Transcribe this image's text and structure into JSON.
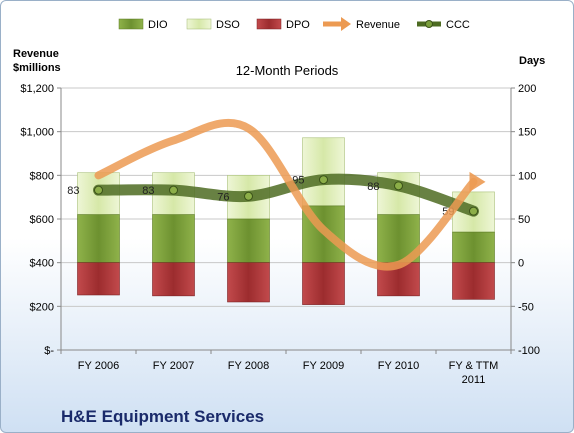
{
  "chart_data": {
    "type": "bar",
    "title": "12-Month Periods",
    "company": "H&E Equipment Services",
    "left_axis": {
      "label_line1": "Revenue",
      "label_line2": "$millions",
      "min": 0,
      "max": 1200,
      "step": 200,
      "tick_labels": [
        "$-",
        "$200",
        "$400",
        "$600",
        "$800",
        "$1,000",
        "$1,200"
      ]
    },
    "right_axis": {
      "label": "Days",
      "min": -100,
      "max": 200,
      "step": 50,
      "tick_labels": [
        "-100",
        "-50",
        "0",
        "50",
        "100",
        "150",
        "200"
      ]
    },
    "categories": [
      {
        "line1": "FY 2006",
        "line2": ""
      },
      {
        "line1": "FY 2007",
        "line2": ""
      },
      {
        "line1": "FY 2008",
        "line2": ""
      },
      {
        "line1": "FY 2009",
        "line2": ""
      },
      {
        "line1": "FY 2010",
        "line2": ""
      },
      {
        "line1": "FY & TTM",
        "line2": "2011"
      }
    ],
    "legend_position": "top",
    "series": [
      {
        "name": "DIO",
        "kind": "stacked-bar-positive",
        "axis": "right",
        "color": "#7ea23c",
        "values": [
          55,
          55,
          50,
          65,
          55,
          35
        ]
      },
      {
        "name": "DSO",
        "kind": "stacked-bar-positive",
        "axis": "right",
        "color": "#e4f0c4",
        "values": [
          48,
          48,
          50,
          78,
          48,
          46
        ]
      },
      {
        "name": "DPO",
        "kind": "bar-negative",
        "axis": "right",
        "color": "#b33a3c",
        "values": [
          -37,
          -38,
          -45,
          -48,
          -38,
          -42
        ]
      },
      {
        "name": "Revenue",
        "kind": "line",
        "axis": "left",
        "color": "#ec9a52",
        "values": [
          800,
          960,
          1015,
          550,
          390,
          770
        ]
      },
      {
        "name": "CCC",
        "kind": "line",
        "axis": "right",
        "color": "#4d6b22",
        "values": [
          83,
          83,
          76,
          95,
          88,
          59
        ],
        "labels": [
          "83",
          "83",
          "76",
          "95",
          "88",
          "59"
        ]
      }
    ]
  }
}
